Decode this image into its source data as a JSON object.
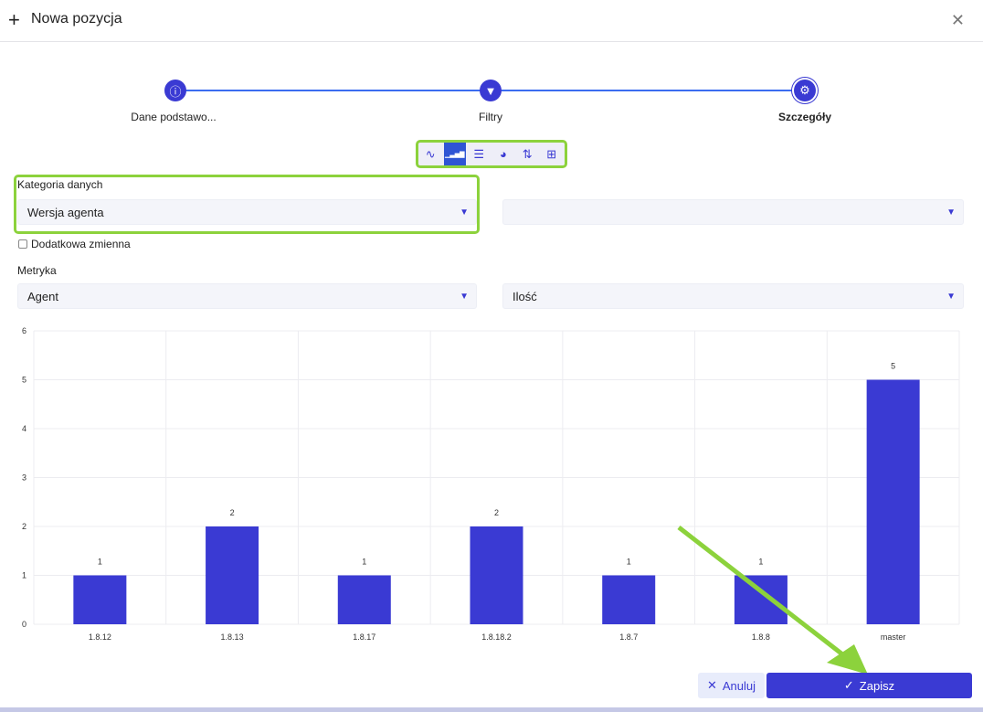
{
  "header": {
    "title": "Nowa pozycja",
    "plus_icon": "plus-icon",
    "close_icon": "close-icon"
  },
  "steps": [
    {
      "label": "Dane podstawo...",
      "icon": "info-icon"
    },
    {
      "label": "Filtry",
      "icon": "filter-icon"
    },
    {
      "label": "Szczegóły",
      "icon": "gears-icon",
      "active": true
    }
  ],
  "chart_types": [
    {
      "icon": "line-chart-icon",
      "glyph": "∿"
    },
    {
      "icon": "bar-chart-icon",
      "glyph": "▁▃▅▇",
      "selected": true
    },
    {
      "icon": "horizontal-bar-icon",
      "glyph": "☰"
    },
    {
      "icon": "pie-chart-icon",
      "glyph": "◕"
    },
    {
      "icon": "sort-icon",
      "glyph": "⇅"
    },
    {
      "icon": "table-icon",
      "glyph": "⊞"
    }
  ],
  "form": {
    "category_label": "Kategoria danych",
    "category_value": "Wersja agenta",
    "second_value": "",
    "extra_var_label": "Dodatkowa zmienna",
    "metric_label": "Metryka",
    "metric_value": "Agent",
    "metric_agg": "Ilość"
  },
  "chart_data": {
    "type": "bar",
    "categories": [
      "1.8.12",
      "1.8.13",
      "1.8.17",
      "1.8.18.2",
      "1.8.7",
      "1.8.8",
      "master"
    ],
    "values": [
      1,
      2,
      1,
      2,
      1,
      1,
      5
    ],
    "ylim": [
      0,
      6
    ],
    "yticks": [
      0,
      1,
      2,
      3,
      4,
      5,
      6
    ],
    "grid": true,
    "color": "#3a3ad3"
  },
  "buttons": {
    "cancel": "Anuluj",
    "save": "Zapisz"
  }
}
